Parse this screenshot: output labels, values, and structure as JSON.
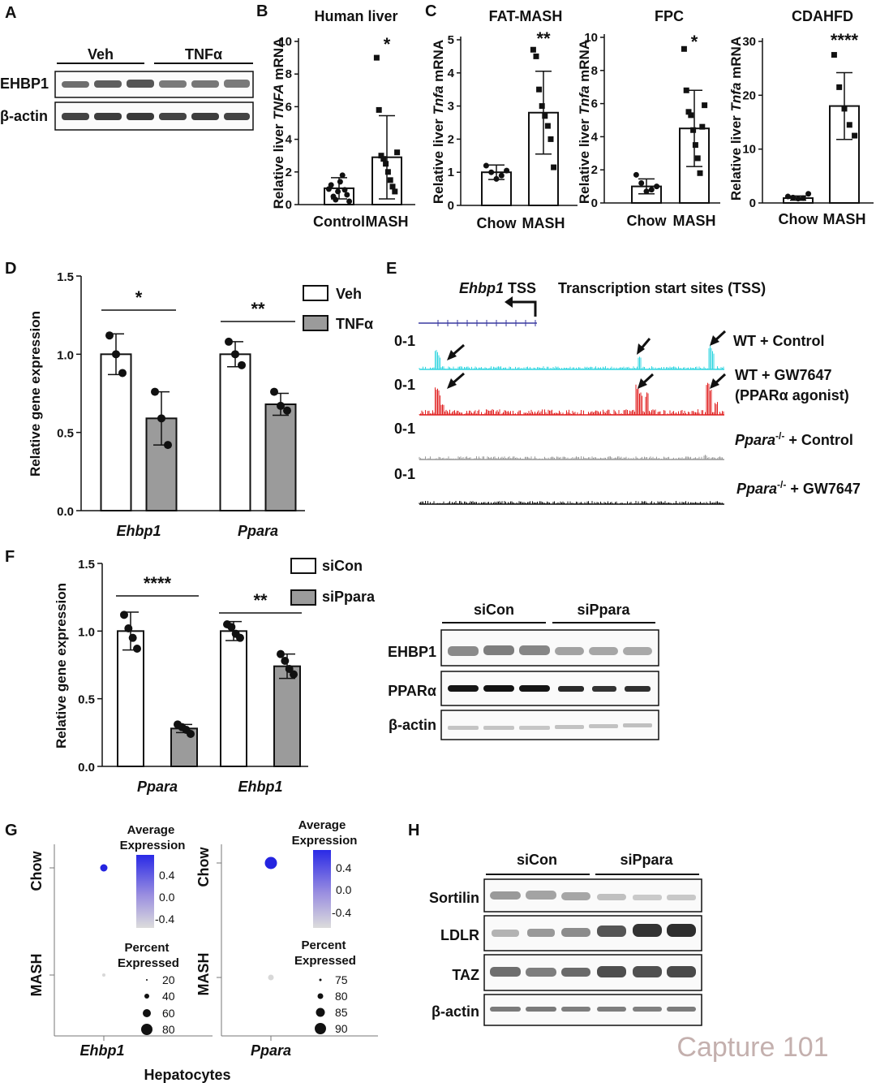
{
  "panels": {
    "A": {
      "label": "A",
      "groups": [
        "Veh",
        "TNFα"
      ],
      "rows": [
        "EHBP1",
        "β-actin"
      ]
    },
    "B": {
      "label": "B",
      "title": "Human liver",
      "ylabel_prefix": "Relative liver ",
      "ylabel_gene": "TNFA",
      "ylabel_suffix": " mRNA",
      "yticks": [
        "0",
        "2",
        "4",
        "6",
        "8",
        "10"
      ],
      "significance": "*"
    },
    "C": {
      "label": "C",
      "subpanels": [
        {
          "title": "FAT-MASH",
          "yticks": [
            "0",
            "1",
            "2",
            "3",
            "4",
            "5"
          ],
          "significance": "**"
        },
        {
          "title": "FPC",
          "yticks": [
            "0",
            "2",
            "4",
            "6",
            "8",
            "10"
          ],
          "significance": "*"
        },
        {
          "title": "CDAHFD",
          "yticks": [
            "0",
            "10",
            "20",
            "30"
          ],
          "significance": "****"
        }
      ],
      "ylabel_prefix": "Relative liver ",
      "ylabel_gene": "Tnfa",
      "ylabel_suffix": " mRNA"
    },
    "D": {
      "label": "D",
      "ylabel": "Relative gene expression",
      "yticks": [
        "0.0",
        "0.5",
        "1.0",
        "1.5"
      ],
      "legend": [
        "Veh",
        "TNFα"
      ],
      "significance": [
        "*",
        "**"
      ]
    },
    "E": {
      "label": "E",
      "tss_gene": "Ehbp1",
      "tss_suffix": " TSS",
      "tss_header": "Transcription start sites (TSS)",
      "range": "0-1",
      "tracks": [
        {
          "line1": "WT + Control",
          "line2": "",
          "color": "#33d6e0"
        },
        {
          "line1": "WT + GW7647",
          "line2": "(PPARα agonist)",
          "color": "#e02020"
        },
        {
          "line1_gene": "Ppara",
          "line1_sup": "-/-",
          "line1": " + Control",
          "color": "#9a9a9a"
        },
        {
          "line1_gene": "Ppara",
          "line1_sup": "-/-",
          "line1": " + GW7647",
          "color": "#111111"
        }
      ]
    },
    "F": {
      "label": "F",
      "ylabel": "Relative gene expression",
      "yticks": [
        "0.0",
        "0.5",
        "1.0",
        "1.5"
      ],
      "legend": [
        "siCon",
        "siPpara"
      ],
      "significance": [
        "****",
        "**"
      ],
      "blot_groups": [
        "siCon",
        "siPpara"
      ],
      "blot_rows": [
        "EHBP1",
        "PPARα",
        "β-actin"
      ]
    },
    "G": {
      "label": "G",
      "row_labels": [
        "Chow",
        "MASH"
      ],
      "avg_title": [
        "Average",
        "Expression"
      ],
      "pct_title": [
        "Percent",
        "Expressed"
      ],
      "left": {
        "gene": "Ehbp1",
        "colorbar": [
          "0.4",
          "0.0",
          "-0.4"
        ],
        "sizes": [
          "20",
          "40",
          "60",
          "80"
        ]
      },
      "right": {
        "gene": "Ppara",
        "colorbar": [
          "0.4",
          "0.0",
          "-0.4"
        ],
        "sizes": [
          "75",
          "80",
          "85",
          "90"
        ]
      },
      "xlabel": "Hepatocytes"
    },
    "H": {
      "label": "H",
      "groups": [
        "siCon",
        "siPpara"
      ],
      "rows": [
        "Sortilin",
        "LDLR",
        "TAZ",
        "β-actin"
      ]
    }
  },
  "chart_data": [
    {
      "panel": "B",
      "type": "bar",
      "title": "Human liver",
      "ylabel": "Relative liver TNFA mRNA",
      "ylim": [
        0,
        10
      ],
      "categories": [
        "Control",
        "MASH"
      ],
      "means": [
        1.0,
        2.9
      ],
      "sd": [
        0.65,
        2.55
      ],
      "points": [
        [
          0.95,
          1.2,
          0.5,
          0.3,
          0.8,
          1.4,
          1.8,
          0.9,
          0.6,
          0.2
        ],
        [
          9.0,
          5.8,
          3.0,
          2.8,
          2.5,
          2.0,
          1.5,
          1.1,
          0.8,
          3.2
        ]
      ],
      "significance": "*"
    },
    {
      "panel": "C1",
      "type": "bar",
      "title": "FAT-MASH",
      "ylabel": "Relative liver Tnfa mRNA",
      "ylim": [
        0,
        5
      ],
      "categories": [
        "Chow",
        "MASH"
      ],
      "means": [
        1.0,
        2.8
      ],
      "sd": [
        0.22,
        1.25
      ],
      "points": [
        [
          1.2,
          1.0,
          0.8,
          0.9,
          1.05
        ],
        [
          4.7,
          4.5,
          3.5,
          3.0,
          2.7,
          2.4,
          2.0,
          1.15
        ]
      ],
      "significance": "**"
    },
    {
      "panel": "C2",
      "type": "bar",
      "title": "FPC",
      "ylabel": "Relative liver Tnfa mRNA",
      "ylim": [
        0,
        10
      ],
      "categories": [
        "Chow",
        "MASH"
      ],
      "means": [
        1.0,
        4.5
      ],
      "sd": [
        0.45,
        2.3
      ],
      "points": [
        [
          1.7,
          1.2,
          0.7,
          0.8,
          1.0
        ],
        [
          9.3,
          6.8,
          5.5,
          5.3,
          4.4,
          3.5,
          2.7,
          1.8,
          4.6,
          5.9
        ]
      ],
      "significance": "*"
    },
    {
      "panel": "C3",
      "type": "bar",
      "title": "CDAHFD",
      "ylabel": "Relative liver Tnfa mRNA",
      "ylim": [
        0,
        30
      ],
      "categories": [
        "Chow",
        "MASH"
      ],
      "means": [
        0.9,
        18.0
      ],
      "sd": [
        0.4,
        6.2
      ],
      "points": [
        [
          1.2,
          1.0,
          0.8,
          0.9,
          1.7
        ],
        [
          27.5,
          21.5,
          17.5,
          14.5,
          12.5
        ]
      ],
      "significance": "****"
    },
    {
      "panel": "D",
      "type": "bar",
      "ylabel": "Relative gene expression",
      "ylim": [
        0,
        1.5
      ],
      "categories": [
        "Ehbp1",
        "Ppara"
      ],
      "series": [
        {
          "name": "Veh",
          "values": [
            1.0,
            1.0
          ],
          "sd": [
            0.13,
            0.08
          ],
          "points": [
            [
              1.12,
              1.0,
              0.88
            ],
            [
              1.08,
              1.0,
              0.93
            ]
          ]
        },
        {
          "name": "TNFα",
          "values": [
            0.59,
            0.68
          ],
          "sd": [
            0.17,
            0.07
          ],
          "points": [
            [
              0.76,
              0.59,
              0.42
            ],
            [
              0.76,
              0.67,
              0.64
            ]
          ]
        }
      ],
      "significance": [
        "*",
        "**"
      ]
    },
    {
      "panel": "F",
      "type": "bar",
      "ylabel": "Relative gene expression",
      "ylim": [
        0,
        1.5
      ],
      "categories": [
        "Ppara",
        "Ehbp1"
      ],
      "series": [
        {
          "name": "siCon",
          "values": [
            1.0,
            1.0
          ],
          "sd": [
            0.14,
            0.07
          ],
          "points": [
            [
              1.12,
              1.02,
              0.95,
              0.87
            ],
            [
              1.05,
              1.03,
              0.98,
              0.95
            ]
          ]
        },
        {
          "name": "siPpara",
          "values": [
            0.28,
            0.74
          ],
          "sd": [
            0.03,
            0.09
          ],
          "points": [
            [
              0.31,
              0.29,
              0.27,
              0.24
            ],
            [
              0.83,
              0.78,
              0.72,
              0.68
            ]
          ]
        }
      ],
      "significance": [
        "****",
        "**"
      ]
    },
    {
      "panel": "G",
      "type": "scatter",
      "x": [
        "Ehbp1",
        "Ppara"
      ],
      "y": [
        "Chow",
        "MASH"
      ],
      "average_expression": [
        [
          0.5,
          -0.5
        ],
        [
          0.5,
          -0.5
        ]
      ],
      "percent_expressed": [
        [
          60,
          20
        ],
        [
          90,
          76
        ]
      ]
    }
  ],
  "watermark": "Capture 101"
}
